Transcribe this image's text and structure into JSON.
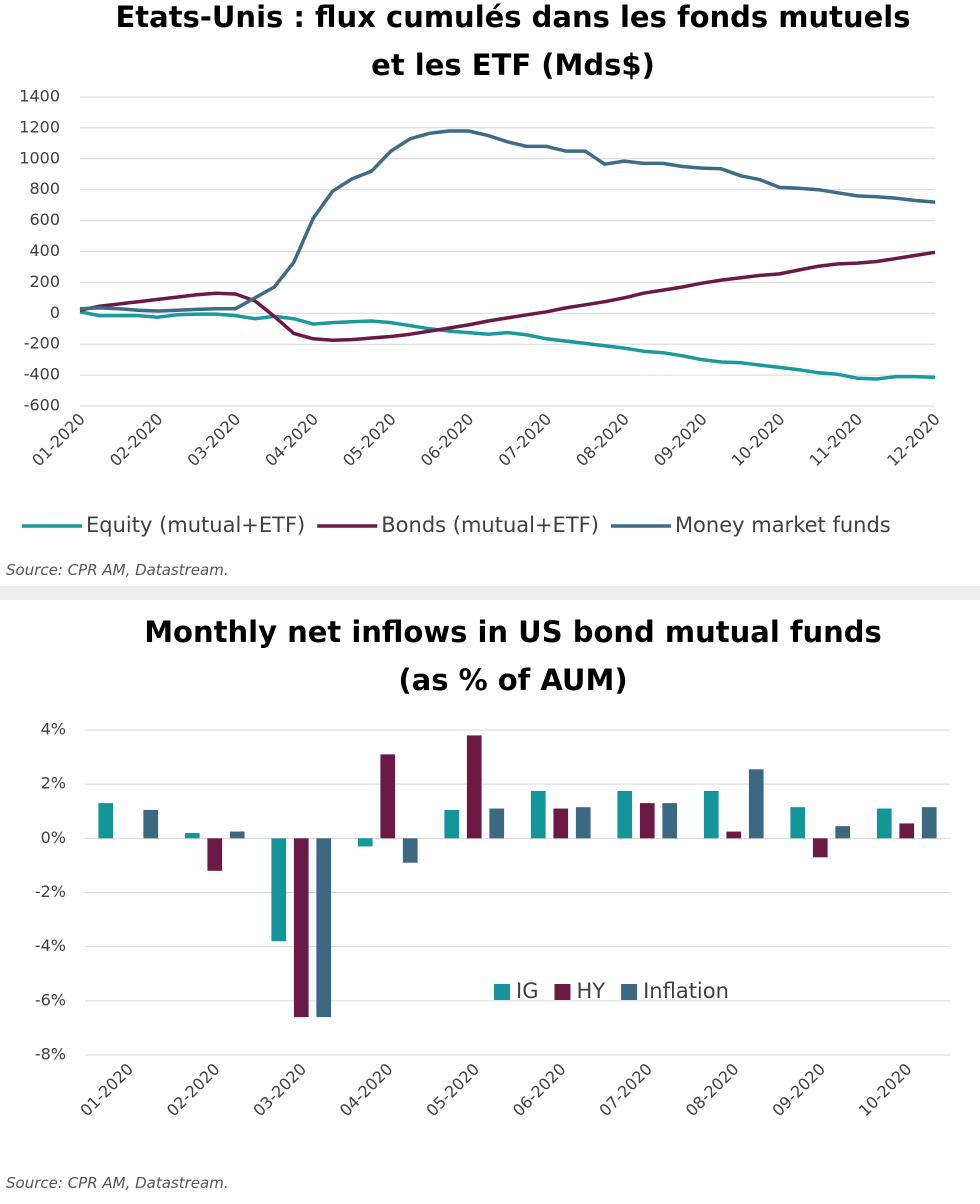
{
  "chart_data": [
    {
      "type": "line",
      "title": [
        "Etats-Unis : flux cumulés dans les fonds mutuels",
        "et les ETF (Mds$)"
      ],
      "categories": [
        "01-2020",
        null,
        null,
        null,
        "02-2020",
        null,
        null,
        null,
        "03-2020",
        null,
        null,
        null,
        "04-2020",
        null,
        null,
        null,
        "05-2020",
        null,
        null,
        null,
        "06-2020",
        null,
        null,
        null,
        "07-2020",
        null,
        null,
        null,
        "08-2020",
        null,
        null,
        null,
        "09-2020",
        null,
        null,
        null,
        "10-2020",
        null,
        null,
        null,
        "11-2020",
        null,
        null,
        null,
        "12-2020"
      ],
      "series": [
        {
          "name": "Equity (mutual+ETF)",
          "color": "#1a9a9a",
          "values": [
            10,
            -15,
            -15,
            -15,
            -25,
            -10,
            -5,
            -5,
            -15,
            -35,
            -20,
            -35,
            -70,
            -60,
            -55,
            -50,
            -60,
            -80,
            -100,
            -115,
            -125,
            -135,
            -125,
            -140,
            -165,
            -180,
            -195,
            -210,
            -225,
            -245,
            -255,
            -275,
            -300,
            -315,
            -320,
            -335,
            -350,
            -365,
            -385,
            -395,
            -420,
            -425,
            -410,
            -410,
            -415
          ]
        },
        {
          "name": "Bonds (mutual+ETF)",
          "color": "#6b1a45",
          "values": [
            20,
            45,
            60,
            75,
            90,
            105,
            120,
            130,
            125,
            80,
            -20,
            -130,
            -165,
            -175,
            -170,
            -160,
            -150,
            -135,
            -115,
            -95,
            -75,
            -50,
            -30,
            -10,
            10,
            35,
            55,
            75,
            100,
            130,
            150,
            170,
            195,
            215,
            230,
            245,
            255,
            280,
            305,
            320,
            325,
            335,
            355,
            375,
            395
          ]
        },
        {
          "name": "Money market funds",
          "color": "#3e6b85",
          "values": [
            30,
            35,
            30,
            20,
            15,
            20,
            25,
            30,
            30,
            100,
            170,
            330,
            615,
            790,
            870,
            920,
            1050,
            1130,
            1165,
            1180,
            1180,
            1150,
            1110,
            1080,
            1080,
            1050,
            1050,
            965,
            985,
            970,
            970,
            950,
            940,
            935,
            890,
            865,
            815,
            810,
            800,
            780,
            760,
            755,
            745,
            730,
            720
          ]
        }
      ],
      "ylim": [
        -600,
        1400
      ],
      "yticks": [
        -600,
        -400,
        -200,
        0,
        200,
        400,
        600,
        800,
        1000,
        1200,
        1400
      ],
      "grid": true,
      "legend": "bottom",
      "source": "Source: CPR AM, Datastream."
    },
    {
      "type": "bar",
      "title": [
        "Monthly net inflows in US bond mutual funds",
        "(as % of AUM)"
      ],
      "categories": [
        "01-2020",
        "02-2020",
        "03-2020",
        "04-2020",
        "05-2020",
        "06-2020",
        "07-2020",
        "08-2020",
        "09-2020",
        "10-2020"
      ],
      "series": [
        {
          "name": "IG",
          "color": "#13959a",
          "values": [
            1.3,
            0.2,
            -3.8,
            -0.3,
            1.05,
            1.75,
            1.75,
            1.75,
            1.15,
            1.1
          ]
        },
        {
          "name": "HY",
          "color": "#6b1a45",
          "values": [
            null,
            -1.2,
            -6.6,
            3.1,
            3.8,
            1.1,
            1.3,
            0.25,
            -0.7,
            0.55
          ]
        },
        {
          "name": "Inflation",
          "color": "#3c6882",
          "values": [
            1.05,
            0.25,
            -6.6,
            -0.9,
            1.1,
            1.15,
            1.3,
            2.55,
            0.45,
            1.15
          ]
        }
      ],
      "ylim": [
        -8,
        4
      ],
      "yticks": [
        {
          "value": -8,
          "label": "-8%"
        },
        {
          "value": -6,
          "label": "-6%"
        },
        {
          "value": -4,
          "label": "-4%"
        },
        {
          "value": -2,
          "label": "-2%"
        },
        {
          "value": 0,
          "label": "0%"
        },
        {
          "value": 2,
          "label": "2%"
        },
        {
          "value": 4,
          "label": "4%"
        }
      ],
      "grid": true,
      "legend": "center",
      "source": "Source: CPR AM, Datastream."
    }
  ]
}
